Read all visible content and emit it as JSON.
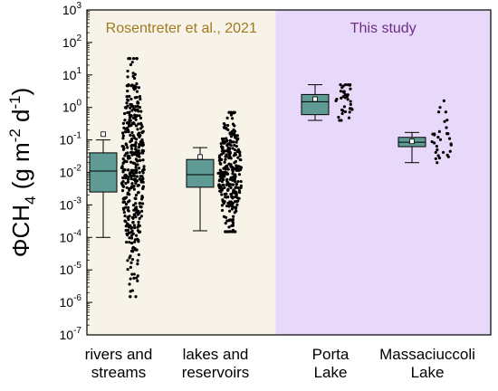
{
  "chart_data": {
    "type": "box+scatter",
    "y_scale": "log",
    "ylim": [
      1e-07,
      1000
    ],
    "ylabel": {
      "base": "ΦCH",
      "sub": "4",
      "unit_open": " (g m",
      "sup1": "-2",
      "unit_mid": " d",
      "sup2": "-1",
      "unit_close": ")"
    },
    "y_tick_exponents": [
      -7,
      -6,
      -5,
      -4,
      -3,
      -2,
      -1,
      0,
      1,
      2,
      3
    ],
    "regions": [
      {
        "label": "Rosentreter et al., 2021",
        "color": "#F8F3E8",
        "text_color": "#A07A1E",
        "group_span": [
          0,
          1
        ]
      },
      {
        "label": "This study",
        "color": "#E8D9FA",
        "text_color": "#6E2C86",
        "group_span": [
          2,
          3
        ]
      }
    ],
    "categories": [
      [
        "rivers and",
        "streams"
      ],
      [
        "lakes and",
        "reservoirs"
      ],
      [
        "Porta",
        "Lake"
      ],
      [
        "Massaciuccoli",
        "Lake"
      ]
    ],
    "box_color": "#5F9A95",
    "groups": [
      {
        "whisker_low": 0.0001,
        "q1": 0.0025,
        "median": 0.011,
        "q3": 0.04,
        "whisker_high": 0.1,
        "mean": 0.15,
        "points_n": 420,
        "points_range": [
          1.5e-06,
          32
        ],
        "points_center": 0.015
      },
      {
        "whisker_low": 0.00016,
        "q1": 0.0035,
        "median": 0.0085,
        "q3": 0.025,
        "whisker_high": 0.058,
        "mean": 0.03,
        "points_n": 300,
        "points_range": [
          0.00015,
          0.7
        ],
        "points_center": 0.009
      },
      {
        "whisker_low": 0.4,
        "q1": 0.6,
        "median": 1.5,
        "q3": 2.5,
        "whisker_high": 5,
        "mean": 1.8,
        "points_n": 36,
        "points_range": [
          0.4,
          5
        ],
        "points_center": 1.4
      },
      {
        "whisker_low": 0.02,
        "q1": 0.062,
        "median": 0.085,
        "q3": 0.12,
        "whisker_high": 0.17,
        "mean": 0.09,
        "points_n": 32,
        "points_range": [
          0.02,
          1.6
        ],
        "points_center": 0.09
      }
    ]
  }
}
